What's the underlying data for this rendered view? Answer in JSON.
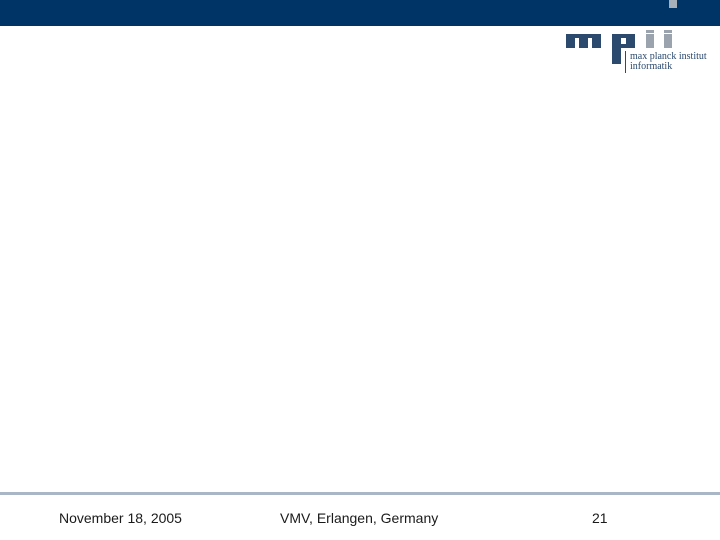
{
  "header": {
    "logo": {
      "mark": "mpii",
      "line1": "max planck institut",
      "line2": "informatik"
    }
  },
  "colors": {
    "header_bar": "#003366",
    "logo": "#2c4a6e",
    "footer_rule": "#a9b6c6",
    "background": "#ffffff"
  },
  "footer": {
    "date": "November 18, 2005",
    "venue": "VMV, Erlangen, Germany",
    "page_number": "21"
  }
}
